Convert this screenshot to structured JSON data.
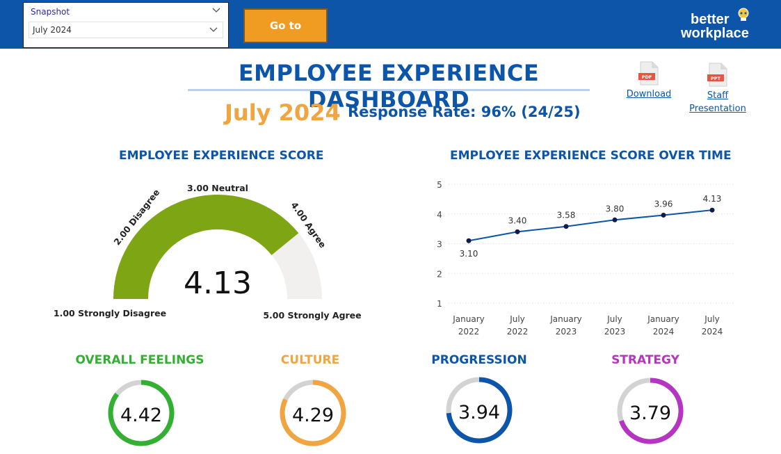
{
  "header": {
    "snapshot_label": "Snapshot",
    "snapshot_value": "July 2024",
    "goto_label": "Go to",
    "logo_line1": "better",
    "logo_line2": "workplace"
  },
  "title": {
    "main": "EMPLOYEE EXPERIENCE DASHBOARD",
    "period": "July 2024",
    "response_rate": "Response Rate: 96% (24/25)"
  },
  "links": {
    "download": {
      "badge": "PDF",
      "label": "Download "
    },
    "presentation": {
      "badge": "PPT",
      "label_line1": "Staff",
      "label_line2": "Presentation"
    }
  },
  "score": {
    "title": "EMPLOYEE EXPERIENCE SCORE",
    "value": "4.13",
    "score_number": 4.13,
    "min": 1,
    "max": 5,
    "fill_color": "#7ea614",
    "track_color": "#f1f0ef",
    "labels": {
      "min": "1.00 Strongly Disagree",
      "disagree": "2.00 Disagree",
      "neutral": "3.00 Neutral",
      "agree": "4.00 Agree",
      "max": "5.00 Strongly Agree"
    }
  },
  "trend": {
    "title": "EMPLOYEE EXPERIENCE SCORE OVER TIME"
  },
  "chart_data": {
    "type": "line",
    "title": "EMPLOYEE EXPERIENCE SCORE OVER TIME",
    "categories": [
      [
        "January",
        "2022"
      ],
      [
        "July",
        "2022"
      ],
      [
        "January",
        "2023"
      ],
      [
        "July",
        "2023"
      ],
      [
        "January",
        "2024"
      ],
      [
        "July",
        "2024"
      ]
    ],
    "series": [
      {
        "name": "Score",
        "values": [
          3.1,
          3.4,
          3.58,
          3.8,
          3.96,
          4.13
        ],
        "labels": [
          "3.10",
          "3.40",
          "3.58",
          "3.80",
          "3.96",
          "4.13"
        ]
      }
    ],
    "yticks": [
      "1",
      "2",
      "3",
      "4",
      "5"
    ],
    "ylim": [
      1,
      5
    ],
    "grid": true,
    "line_color": "#0c55a9",
    "marker_color": "#0f1b4d"
  },
  "metrics": [
    {
      "title": "OVERALL FEELINGS",
      "value": "4.42",
      "score": 4.42,
      "color": "#33b032"
    },
    {
      "title": "CULTURE",
      "value": "4.29",
      "score": 4.29,
      "color": "#f0a540"
    },
    {
      "title": "PROGRESSION",
      "value": "3.94",
      "score": 3.94,
      "color": "#0c55a9"
    },
    {
      "title": "STRATEGY",
      "value": "3.79",
      "score": 3.79,
      "color": "#b534c2"
    }
  ],
  "colors": {
    "brand_blue": "#0c55a9",
    "accent_orange": "#f09c22",
    "ring_track": "#d3d3d3"
  }
}
